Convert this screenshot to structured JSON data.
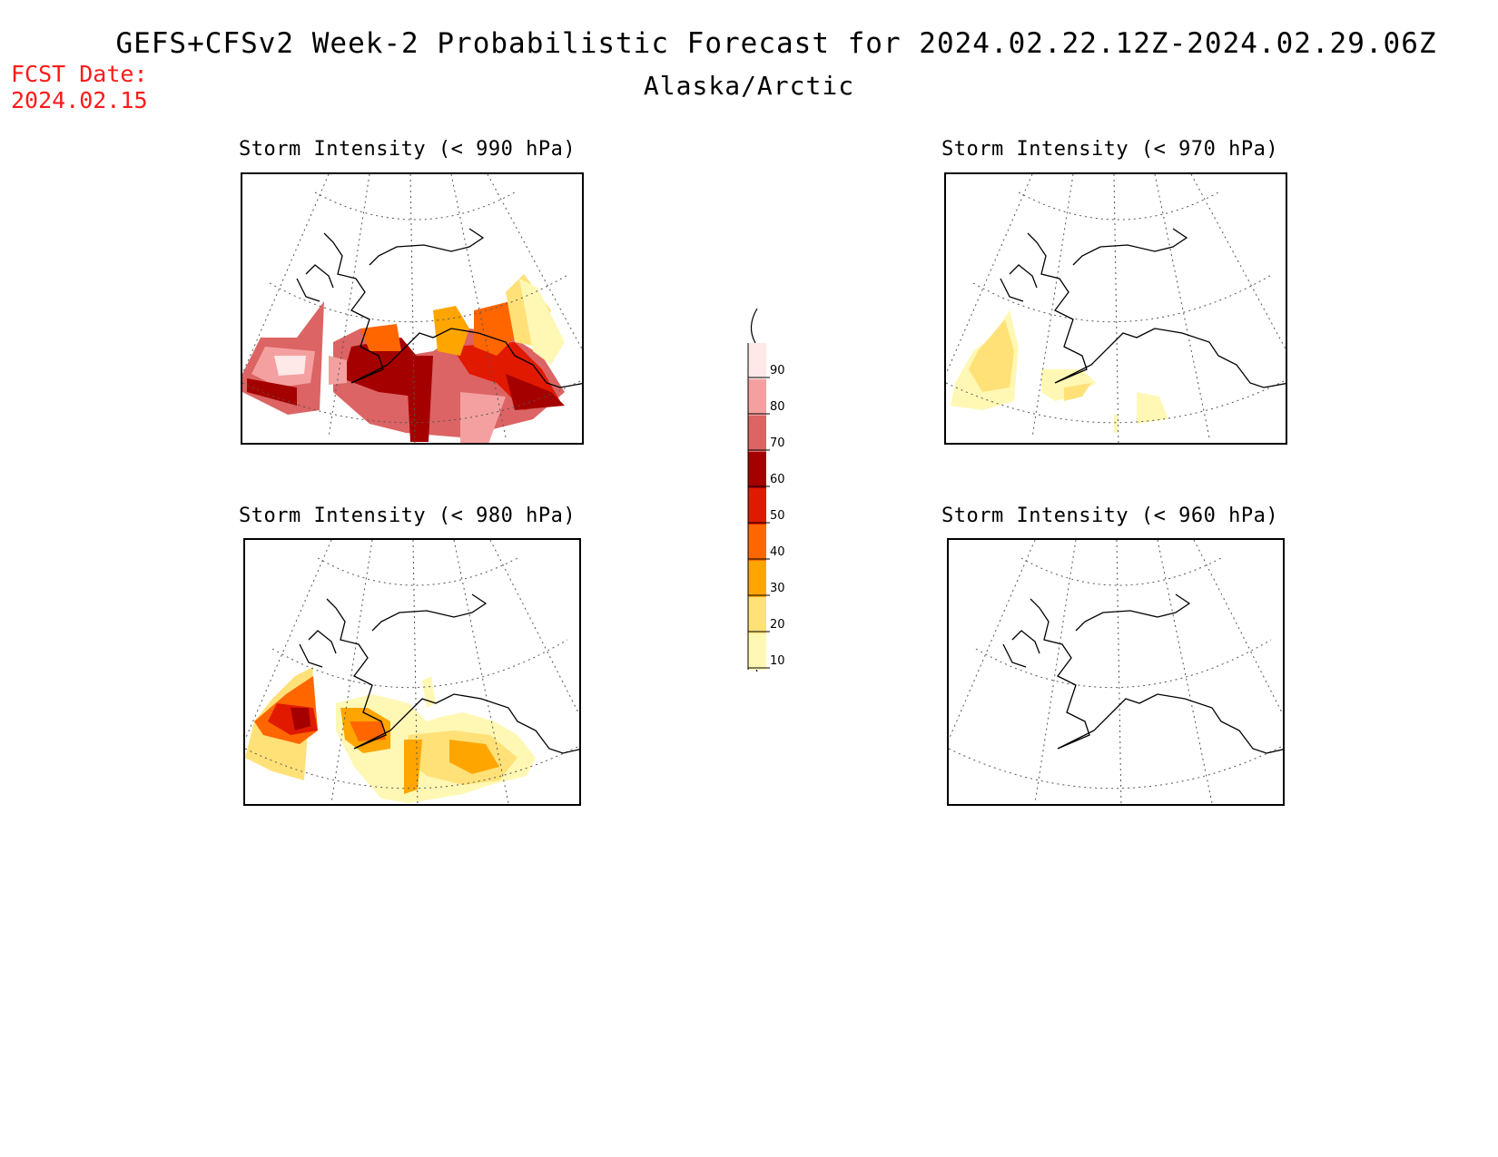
{
  "header": {
    "title": "GEFS+CFSv2 Week-2 Probabilistic Forecast for 2024.02.22.12Z-2024.02.29.06Z",
    "region": "Alaska/Arctic",
    "fcst_label": "FCST Date:",
    "fcst_date": "2024.02.15"
  },
  "panels": [
    {
      "id": "p990",
      "title": "Storm Intensity (< 990 hPa)",
      "coverage": "high"
    },
    {
      "id": "p970",
      "title": "Storm Intensity (< 970 hPa)",
      "coverage": "low"
    },
    {
      "id": "p980",
      "title": "Storm Intensity (< 980 hPa)",
      "coverage": "medium"
    },
    {
      "id": "p960",
      "title": "Storm Intensity (< 960 hPa)",
      "coverage": "none"
    }
  ],
  "legend": {
    "ticks": [
      "90",
      "80",
      "70",
      "60",
      "50",
      "40",
      "30",
      "20",
      "10"
    ],
    "colors": [
      "#ffe8e8",
      "#f4a0a0",
      "#dc6464",
      "#a50000",
      "#e11900",
      "#ff6600",
      "#ffa500",
      "#ffe178",
      "#fff8b4"
    ]
  }
}
